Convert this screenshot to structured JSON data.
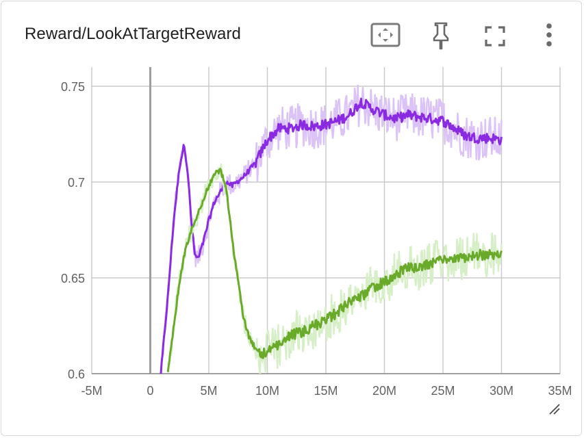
{
  "card": {
    "title": "Reward/LookAtTargetReward"
  },
  "toolbar": {
    "icons": [
      "fit-domain-icon",
      "pin-icon",
      "fullscreen-icon",
      "more-vert-icon"
    ]
  },
  "colors": {
    "purple": "#8a2be2",
    "purple_light": "#dcc3f7",
    "green": "#6aaa2a",
    "green_light": "#d6efc7",
    "grid": "#c8c8c8",
    "zero_axis": "#9e9e9e"
  },
  "chart_data": {
    "type": "line",
    "title": "Reward/LookAtTargetReward",
    "xlabel": "",
    "ylabel": "",
    "xlim": [
      -5000000,
      35000000
    ],
    "ylim": [
      0.6,
      0.76
    ],
    "x_ticks": [
      -5000000,
      0,
      5000000,
      10000000,
      15000000,
      20000000,
      25000000,
      30000000,
      35000000
    ],
    "x_tick_labels": [
      "-5M",
      "0",
      "5M",
      "10M",
      "15M",
      "20M",
      "25M",
      "30M",
      "35M"
    ],
    "y_ticks": [
      0.6,
      0.65,
      0.7,
      0.75
    ],
    "y_tick_labels": [
      "0.6",
      "0.65",
      "0.7",
      "0.75"
    ],
    "grid": true,
    "series": [
      {
        "color": "#8a2be2",
        "light": "#dcc3f7",
        "x": [
          0.9,
          1.5,
          2.0,
          2.5,
          2.9,
          3.2,
          3.5,
          3.8,
          4.1,
          4.5,
          5.0,
          5.5,
          6.0,
          6.5,
          7.0,
          8.0,
          9.0,
          10.0,
          11.0,
          12.0,
          13.0,
          14.0,
          15.0,
          16.0,
          17.0,
          18.0,
          19.0,
          20.0,
          21.0,
          22.0,
          23.0,
          24.0,
          25.0,
          26.0,
          27.0,
          28.0,
          29.0,
          30.0
        ],
        "y": [
          0.6,
          0.64,
          0.68,
          0.708,
          0.72,
          0.705,
          0.68,
          0.662,
          0.66,
          0.668,
          0.68,
          0.69,
          0.695,
          0.7,
          0.698,
          0.703,
          0.71,
          0.722,
          0.728,
          0.728,
          0.73,
          0.729,
          0.73,
          0.732,
          0.735,
          0.742,
          0.738,
          0.735,
          0.733,
          0.735,
          0.734,
          0.733,
          0.732,
          0.728,
          0.724,
          0.723,
          0.723,
          0.722
        ]
      },
      {
        "color": "#6aaa2a",
        "light": "#d6efc7",
        "x": [
          1.5,
          2.0,
          2.5,
          3.0,
          3.5,
          4.0,
          4.5,
          5.0,
          5.5,
          6.0,
          6.5,
          7.0,
          7.5,
          8.0,
          8.5,
          9.0,
          9.5,
          10.0,
          11.0,
          12.0,
          13.0,
          14.0,
          15.0,
          16.0,
          17.0,
          18.0,
          19.0,
          20.0,
          21.0,
          22.0,
          23.0,
          24.0,
          25.0,
          26.0,
          27.0,
          28.0,
          29.0,
          30.0
        ],
        "y": [
          0.6,
          0.625,
          0.648,
          0.665,
          0.675,
          0.682,
          0.69,
          0.698,
          0.704,
          0.706,
          0.696,
          0.67,
          0.648,
          0.628,
          0.618,
          0.613,
          0.61,
          0.611,
          0.615,
          0.62,
          0.622,
          0.625,
          0.628,
          0.632,
          0.638,
          0.64,
          0.645,
          0.648,
          0.652,
          0.655,
          0.655,
          0.658,
          0.66,
          0.66,
          0.661,
          0.662,
          0.662,
          0.663
        ]
      }
    ]
  }
}
